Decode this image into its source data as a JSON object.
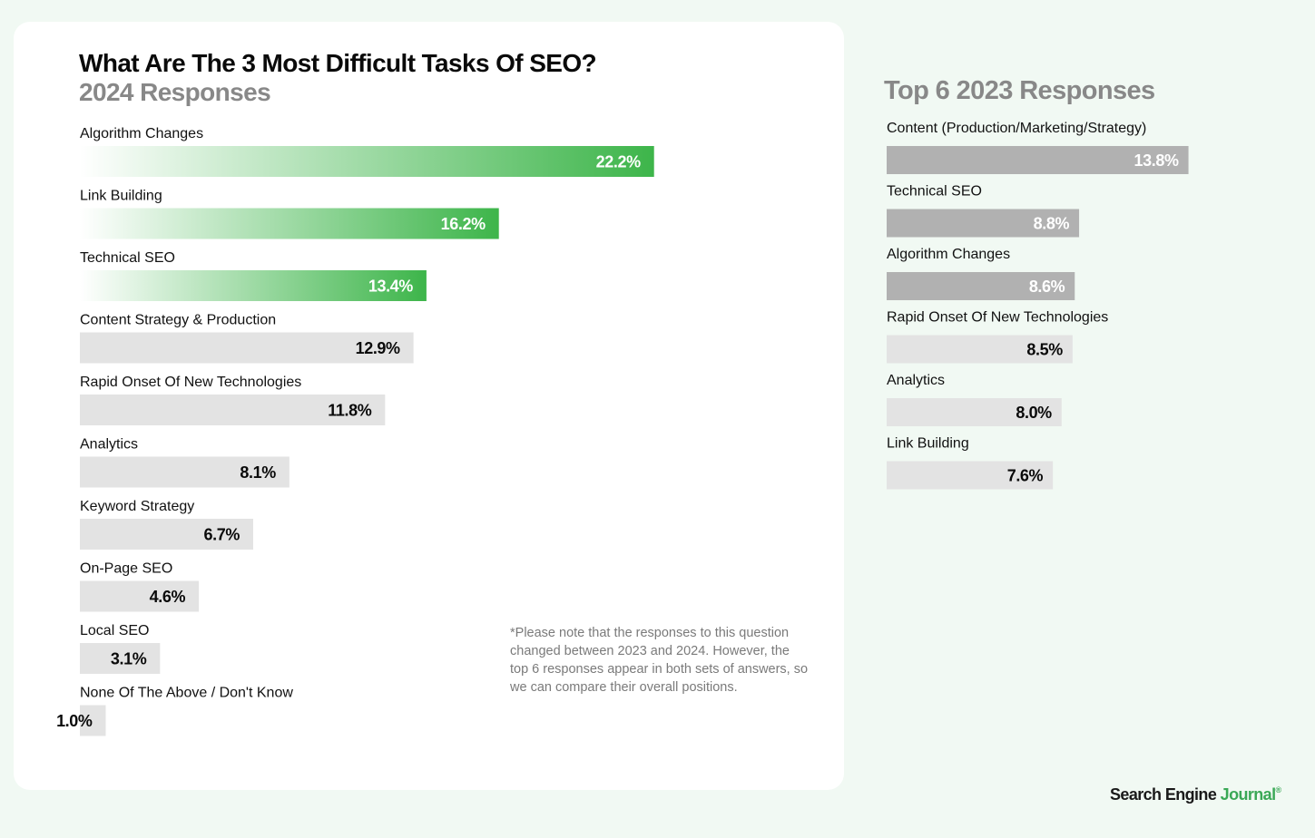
{
  "page": {
    "title": "What Are The 3 Most Difficult Tasks Of SEO?",
    "subtitle": "2024 Responses",
    "right_title": "Top 6 2023 Responses",
    "note": "*Please note that the responses to this question changed between 2023 and 2024. However, the top 6 responses appear in both sets of answers, so we can compare their overall positions.",
    "brand": {
      "part1": "Search Engine ",
      "part2": "Journal",
      "mark": "®"
    }
  },
  "colors": {
    "green": "#3db54a",
    "light_gray": "#e3e3e3",
    "mid_gray": "#b1b1b1",
    "title_gray": "#888888"
  },
  "chart_data": [
    {
      "type": "bar",
      "orientation": "horizontal",
      "title": "What Are The 3 Most Difficult Tasks Of SEO?",
      "subtitle": "2024 Responses",
      "categories": [
        "Algorithm Changes",
        "Link Building",
        "Technical SEO",
        "Content Strategy  & Production",
        "Rapid Onset Of New Technologies",
        "Analytics",
        "Keyword Strategy",
        "On-Page SEO",
        "Local SEO",
        "None Of The Above / Don't Know"
      ],
      "values": [
        22.2,
        16.2,
        13.4,
        12.9,
        11.8,
        8.1,
        6.7,
        4.6,
        3.1,
        1.0
      ],
      "labels": [
        "22.2%",
        "16.2%",
        "13.4%",
        "12.9%",
        "11.8%",
        "8.1%",
        "6.7%",
        "4.6%",
        "3.1%",
        "1.0%"
      ],
      "highlight_top": 3,
      "unit": "%"
    },
    {
      "type": "bar",
      "orientation": "horizontal",
      "title": "Top 6 2023 Responses",
      "categories": [
        "Content (Production/Marketing/Strategy)",
        "Technical SEO",
        "Algorithm Changes",
        "Rapid Onset Of New Technologies",
        "Analytics",
        "Link Building"
      ],
      "values": [
        13.8,
        8.8,
        8.6,
        8.5,
        8.0,
        7.6
      ],
      "labels": [
        "13.8%",
        "8.8%",
        "8.6%",
        "8.5%",
        "8.0%",
        "7.6%"
      ],
      "highlight_top": 3,
      "unit": "%"
    }
  ]
}
